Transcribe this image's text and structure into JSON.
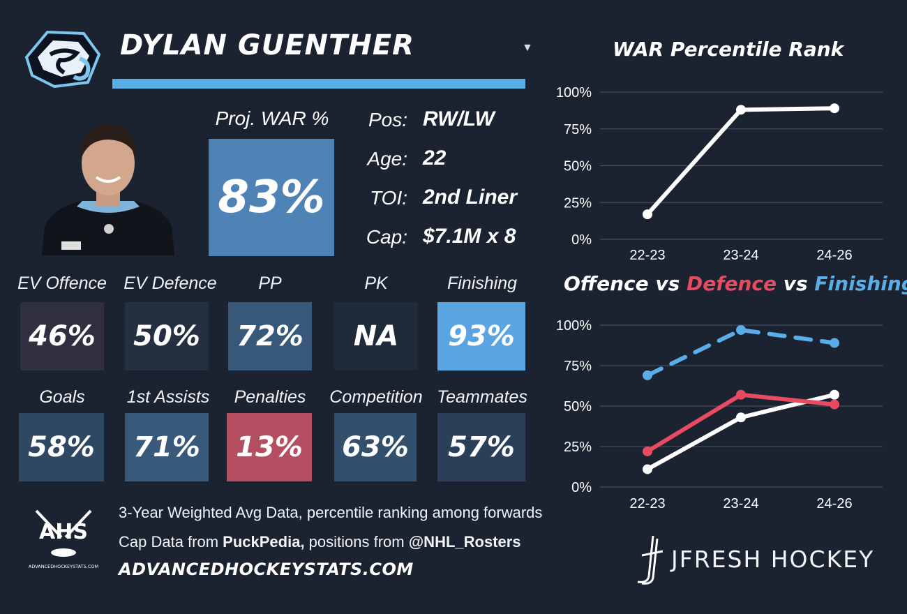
{
  "player": {
    "name": "DYLAN GUENTHER",
    "team_logo_icon": "mammoth-logo-icon",
    "photo_icon": "player-photo",
    "dropdown_icon": "caret-down-icon"
  },
  "projection": {
    "label": "Proj. WAR %",
    "value": "83%",
    "color": "#4f82b5"
  },
  "info": [
    {
      "label": "Pos:",
      "value": "RW/LW"
    },
    {
      "label": "Age:",
      "value": "22"
    },
    {
      "label": "TOI:",
      "value": "2nd Liner"
    },
    {
      "label": "Cap:",
      "value": "$7.1M x 8"
    }
  ],
  "stats_row1": [
    {
      "label": "EV Offence",
      "value": "46%",
      "color": "#302f3f"
    },
    {
      "label": "EV Defence",
      "value": "50%",
      "color": "#243042"
    },
    {
      "label": "PP",
      "value": "72%",
      "color": "#375878"
    },
    {
      "label": "PK",
      "value": "NA",
      "color": "#202b3a"
    },
    {
      "label": "Finishing",
      "value": "93%",
      "color": "#5ba4e2"
    }
  ],
  "stats_row2": [
    {
      "label": "Goals",
      "value": "58%",
      "color": "#2e4862"
    },
    {
      "label": "1st Assists",
      "value": "71%",
      "color": "#38597a"
    },
    {
      "label": "Penalties",
      "value": "13%",
      "color": "#b34f60"
    },
    {
      "label": "Competition",
      "value": "63%",
      "color": "#324f6c"
    },
    {
      "label": "Teammates",
      "value": "57%",
      "color": "#2b3f58"
    }
  ],
  "footer": {
    "ahs_logo_text": "AHS",
    "ahs_logo_subtext": "ADVANCEDHOCKEYSTATS.COM",
    "line1": "3-Year Weighted Avg Data, percentile ranking among forwards",
    "line2_prefix": "Cap Data from ",
    "line2_source1": "PuckPedia,",
    "line2_middle": " positions from ",
    "line2_source2": "@NHL_Rosters",
    "site": "ADVANCEDHOCKEYSTATS.COM",
    "brand": "JFRESH HOCKEY",
    "brand_logo_icon": "jfresh-logo-icon"
  },
  "chart_data": [
    {
      "type": "line",
      "title": "WAR Percentile Rank",
      "categories": [
        "22-23",
        "23-24",
        "24-26"
      ],
      "series": [
        {
          "values": [
            17,
            88,
            89
          ],
          "color": "#ffffff",
          "dash": false
        }
      ],
      "ylim": [
        0,
        100
      ],
      "yticks": [
        "0%",
        "25%",
        "50%",
        "75%",
        "100%"
      ],
      "grid": true
    },
    {
      "type": "line",
      "title_parts": [
        {
          "text": "Offence",
          "color": "#ffffff"
        },
        {
          "text": " vs ",
          "color": "#ffffff"
        },
        {
          "text": "Defence",
          "color": "#e84a5f"
        },
        {
          "text": " vs ",
          "color": "#ffffff"
        },
        {
          "text": "Finishing",
          "color": "#5aaee8"
        }
      ],
      "categories": [
        "22-23",
        "23-24",
        "24-26"
      ],
      "series": [
        {
          "name": "Offence",
          "values": [
            11,
            43,
            57
          ],
          "color": "#ffffff",
          "dash": false
        },
        {
          "name": "Defence",
          "values": [
            22,
            57,
            51
          ],
          "color": "#e84a5f",
          "dash": false
        },
        {
          "name": "Finishing",
          "values": [
            69,
            97,
            89
          ],
          "color": "#5aaee8",
          "dash": true
        }
      ],
      "ylim": [
        0,
        100
      ],
      "yticks": [
        "0%",
        "25%",
        "50%",
        "75%",
        "100%"
      ],
      "grid": true
    }
  ]
}
